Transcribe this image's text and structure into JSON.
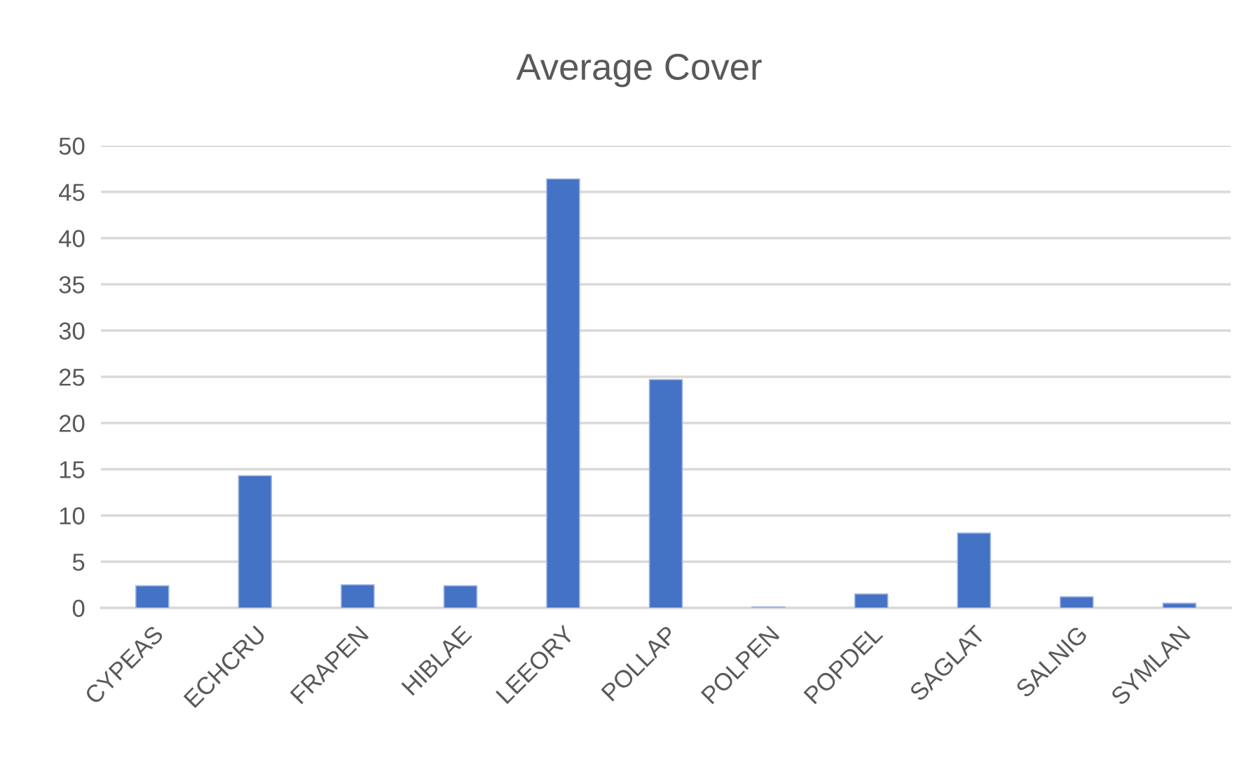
{
  "chart_data": {
    "type": "bar",
    "title": "Average Cover",
    "categories": [
      "CYPEAS",
      "ECHCRU",
      "FRAPEN",
      "HIBLAE",
      "LEEORY",
      "POLLAP",
      "POLPEN",
      "POPDEL",
      "SAGLAT",
      "SALNIG",
      "SYMLAN"
    ],
    "values": [
      2.4,
      14.3,
      2.5,
      2.4,
      46.4,
      24.7,
      0.1,
      1.5,
      8.1,
      1.2,
      0.5
    ],
    "color": "#4472c4",
    "ylim": [
      0,
      50
    ],
    "yticks": [
      0,
      5,
      10,
      15,
      20,
      25,
      30,
      35,
      40,
      45,
      50
    ],
    "grid": "y",
    "legend": false
  }
}
